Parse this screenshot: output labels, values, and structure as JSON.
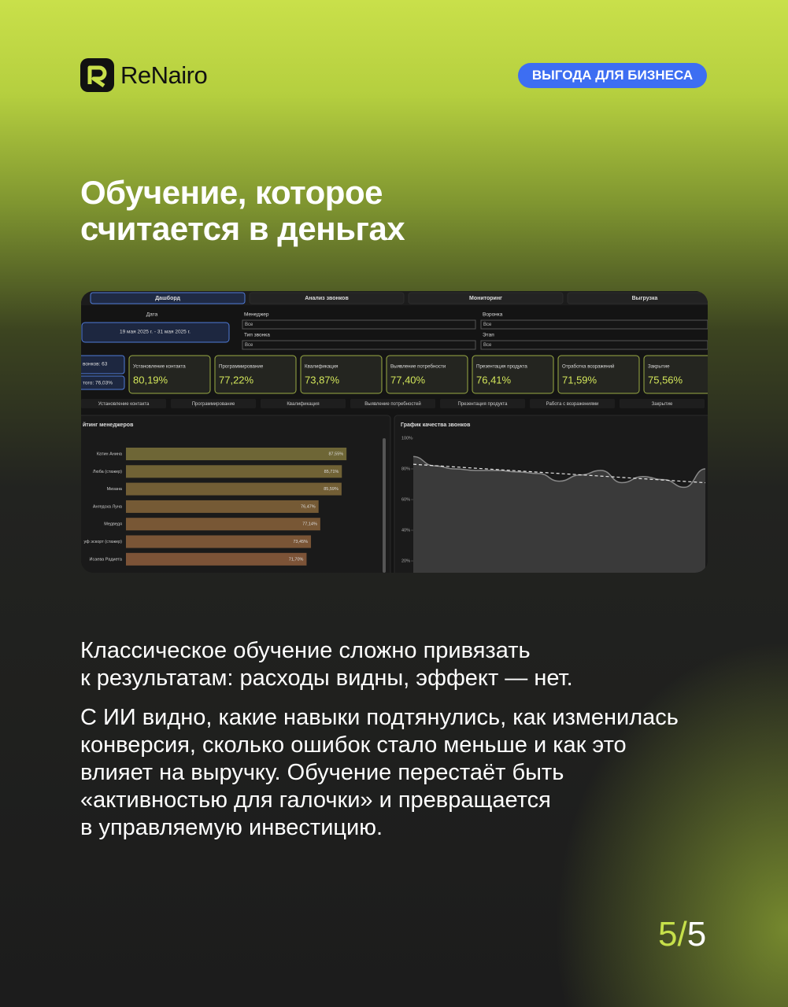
{
  "header": {
    "logo": "ReNairo",
    "badge": "ВЫГОДА ДЛЯ БИЗНЕСА"
  },
  "title": [
    "Обучение, которое",
    "считается в деньгах"
  ],
  "dashboard": {
    "tabs": [
      "Дашборд",
      "Анализ звонков",
      "Мониторинг",
      "Выгрузка"
    ],
    "filters": {
      "date_label": "Дата",
      "date_range": "19 мая 2025 г. - 31 мая 2025 г.",
      "manager_label": "Менеджер",
      "manager_value": "Все",
      "call_type_label": "Тип звонка",
      "call_type_value": "Все",
      "funnel_label": "Воронка",
      "funnel_value": "Все",
      "stage_label": "Этап",
      "stage_value": "Все"
    },
    "summary": [
      "вонков: 63",
      "того: 76,03%"
    ],
    "cards": [
      {
        "label": "Установление контакта",
        "value": "80,19%"
      },
      {
        "label": "Программирование",
        "value": "77,22%"
      },
      {
        "label": "Квалификация",
        "value": "73,87%"
      },
      {
        "label": "Выявление потребности",
        "value": "77,40%"
      },
      {
        "label": "Презентация продукта",
        "value": "76,41%"
      },
      {
        "label": "Отработка возражений",
        "value": "71,59%"
      },
      {
        "label": "Закрытие",
        "value": "75,56%"
      }
    ],
    "stages": [
      "Установление контакта",
      "Программирование",
      "Квалификация",
      "Выявление потребностей",
      "Презентация продукта",
      "Работа с возражениями",
      "Закрытие"
    ],
    "rating": {
      "type": "bar",
      "title": "йтинг менеджеров",
      "categories": [
        "Катин Анина",
        "Люба (стажер)",
        "Мизана",
        "Ангедска Луна",
        "Медведя",
        "уф эскорт (стажер)",
        "Исаева Радиета"
      ],
      "values": [
        87.55,
        85.71,
        85.59,
        76.47,
        77.14,
        73.45,
        71.7
      ],
      "value_labels": [
        "87,55%",
        "85,71%",
        "85,59%",
        "76,47%",
        "77,14%",
        "73,45%",
        "71,70%"
      ],
      "xlim": [
        0,
        100
      ]
    },
    "quality": {
      "type": "line",
      "title": "График качества звонков",
      "ylim": [
        20,
        100
      ],
      "yticks": [
        {
          "value": 100,
          "label": "100%"
        },
        {
          "value": 80,
          "label": "80%"
        },
        {
          "value": 60,
          "label": "60%"
        },
        {
          "value": 40,
          "label": "40%"
        },
        {
          "value": 20,
          "label": "20%"
        }
      ],
      "values": [
        88,
        82,
        80,
        79,
        79,
        78,
        77,
        72,
        76,
        79,
        71,
        75,
        73,
        68,
        80
      ],
      "trend": [
        83,
        71
      ]
    }
  },
  "body": [
    [
      "Классическое обучение сложно привязать",
      "к результатам: расходы видны, эффект — нет."
    ],
    [
      "С ИИ видно, какие навыки подтянулись, как изменилась",
      "конверсия, сколько ошибок стало меньше и как это",
      "влияет на выручку. Обучение перестаёт быть",
      "«активностью для галочки» и превращается",
      "в управляемую инвестицию."
    ]
  ],
  "page": {
    "current": "5",
    "separator": "/",
    "total": "5"
  }
}
